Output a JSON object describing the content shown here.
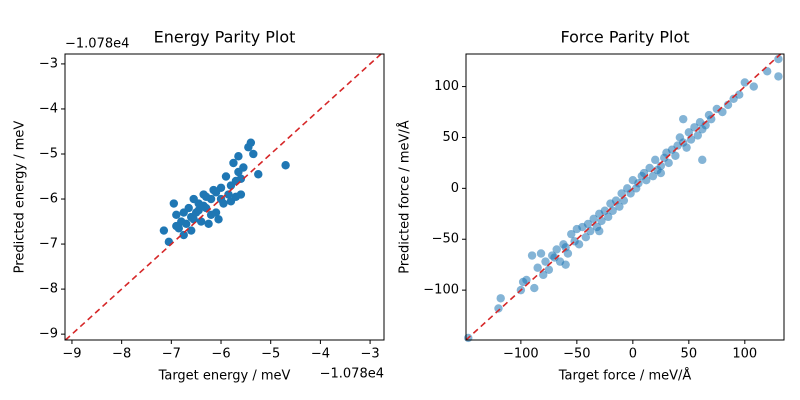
{
  "chart_data": [
    {
      "type": "scatter",
      "title": "Energy Parity Plot",
      "x_label": "Target energy / meV",
      "y_label": "Predicted energy / meV",
      "x_offset_label": "−1.078e4",
      "y_offset_label": "−1.078e4",
      "color": "#1f77b4",
      "alpha": 1,
      "diagonal_color": "#d62728",
      "xlim": [
        -9.14,
        -2.72
      ],
      "ylim": [
        -9.13,
        -2.78
      ],
      "xticks": [
        {
          "value": -9,
          "label": "−9"
        },
        {
          "value": -8,
          "label": "−8"
        },
        {
          "value": -7,
          "label": "−7"
        },
        {
          "value": -6,
          "label": "−6"
        },
        {
          "value": -5,
          "label": "−5"
        },
        {
          "value": -4,
          "label": "−4"
        },
        {
          "value": -3,
          "label": "−3"
        }
      ],
      "yticks": [
        {
          "value": -9,
          "label": "−9"
        },
        {
          "value": -8,
          "label": "−8"
        },
        {
          "value": -7,
          "label": "−7"
        },
        {
          "value": -6,
          "label": "−6"
        },
        {
          "value": -5,
          "label": "−5"
        },
        {
          "value": -4,
          "label": "−4"
        },
        {
          "value": -3,
          "label": "−3"
        }
      ],
      "x": [
        -7.15,
        -7.05,
        -6.95,
        -6.9,
        -6.85,
        -6.8,
        -6.75,
        -6.7,
        -6.65,
        -6.6,
        -6.55,
        -6.5,
        -6.45,
        -6.4,
        -6.35,
        -6.3,
        -6.25,
        -6.2,
        -6.15,
        -6.1,
        -6.05,
        -6.0,
        -5.95,
        -5.9,
        -5.85,
        -5.8,
        -5.75,
        -5.7,
        -5.65,
        -5.6,
        -5.55,
        -5.45,
        -5.4,
        -5.35,
        -5.25,
        -4.7,
        -6.6,
        -6.45,
        -6.3,
        -6.2,
        -6.0,
        -5.8,
        -5.65,
        -5.7,
        -6.9,
        -6.75,
        -6.55,
        -6.35,
        -5.6,
        -6.1
      ],
      "y": [
        -6.7,
        -6.95,
        -6.1,
        -6.35,
        -6.65,
        -6.5,
        -6.8,
        -6.55,
        -6.2,
        -6.4,
        -6.0,
        -6.3,
        -6.1,
        -6.5,
        -5.9,
        -6.2,
        -6.55,
        -6.0,
        -5.8,
        -6.3,
        -6.45,
        -5.75,
        -6.1,
        -5.5,
        -5.9,
        -6.05,
        -5.2,
        -5.6,
        -5.05,
        -5.9,
        -5.3,
        -4.85,
        -4.75,
        -5.0,
        -5.45,
        -5.25,
        -6.7,
        -6.25,
        -5.95,
        -6.35,
        -6.0,
        -5.7,
        -5.4,
        -5.95,
        -6.6,
        -6.3,
        -6.45,
        -6.15,
        -5.55,
        -5.85
      ]
    },
    {
      "type": "scatter",
      "title": "Force Parity Plot",
      "x_label": "Target force / meV/Å",
      "y_label": "Predicted force / meV/Å",
      "color": "#1f77b4",
      "alpha": 0.55,
      "diagonal_color": "#d62728",
      "xlim": [
        -149,
        135
      ],
      "ylim": [
        -149,
        132
      ],
      "xticks": [
        {
          "value": -100,
          "label": "−100"
        },
        {
          "value": -50,
          "label": "−50"
        },
        0,
        50,
        100
      ],
      "yticks": [
        {
          "value": -100,
          "label": "−100"
        },
        {
          "value": -50,
          "label": "−50"
        },
        0,
        50,
        100
      ],
      "x": [
        -147,
        -120,
        -118,
        -100,
        -98,
        -95,
        -90,
        -88,
        -85,
        -82,
        -80,
        -78,
        -75,
        -72,
        -70,
        -68,
        -65,
        -62,
        -60,
        -58,
        -55,
        -52,
        -50,
        -48,
        -45,
        -42,
        -40,
        -38,
        -35,
        -32,
        -30,
        -28,
        -25,
        -22,
        -20,
        -18,
        -15,
        -12,
        -10,
        -8,
        -5,
        -2,
        0,
        3,
        5,
        8,
        10,
        12,
        15,
        18,
        20,
        22,
        25,
        28,
        30,
        32,
        35,
        38,
        40,
        42,
        45,
        48,
        50,
        52,
        55,
        58,
        60,
        62,
        65,
        68,
        70,
        75,
        80,
        85,
        90,
        95,
        100,
        108,
        120,
        130,
        130,
        45,
        -30,
        62,
        -60,
        25
      ],
      "y": [
        -147,
        -118,
        -108,
        -100,
        -92,
        -90,
        -66,
        -98,
        -78,
        -64,
        -85,
        -72,
        -80,
        -66,
        -68,
        -60,
        -72,
        -55,
        -58,
        -64,
        -45,
        -52,
        -40,
        -55,
        -38,
        -48,
        -35,
        -42,
        -30,
        -38,
        -25,
        -32,
        -22,
        -28,
        -15,
        -22,
        -12,
        -18,
        -5,
        -12,
        0,
        -5,
        8,
        0,
        5,
        12,
        15,
        8,
        20,
        12,
        28,
        18,
        22,
        30,
        35,
        25,
        38,
        32,
        42,
        50,
        45,
        40,
        55,
        48,
        60,
        52,
        65,
        58,
        62,
        72,
        68,
        78,
        75,
        82,
        88,
        92,
        104,
        100,
        115,
        127,
        110,
        68,
        -42,
        28,
        -75,
        15
      ]
    }
  ]
}
